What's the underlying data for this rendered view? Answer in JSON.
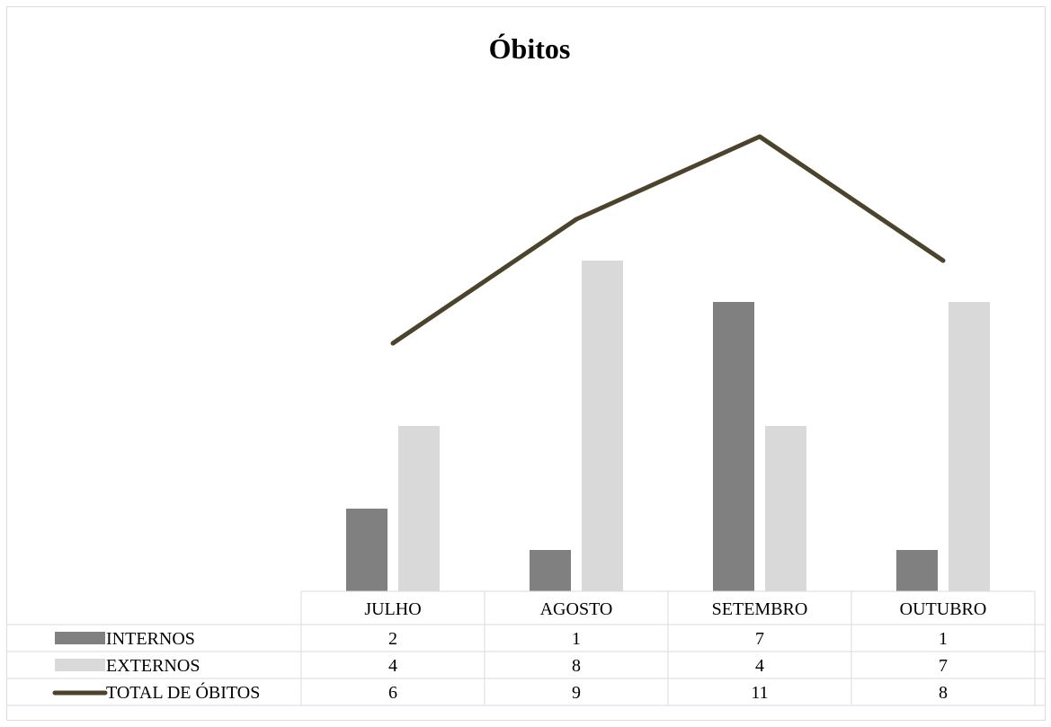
{
  "chart_data": {
    "type": "bar",
    "title": "Óbitos",
    "categories": [
      "JULHO",
      "AGOSTO",
      "SETEMBRO",
      "OUTUBRO"
    ],
    "series": [
      {
        "name": "INTERNOS",
        "type": "bar",
        "color": "#808080",
        "values": [
          2,
          1,
          7,
          1
        ]
      },
      {
        "name": "EXTERNOS",
        "type": "bar",
        "color": "#d9d9d9",
        "values": [
          4,
          8,
          4,
          7
        ]
      },
      {
        "name": "TOTAL DE ÓBITOS",
        "type": "line",
        "color": "#4b432b",
        "values": [
          6,
          9,
          11,
          8
        ]
      }
    ],
    "data_table": true,
    "legend": "in data table",
    "grid": false
  }
}
